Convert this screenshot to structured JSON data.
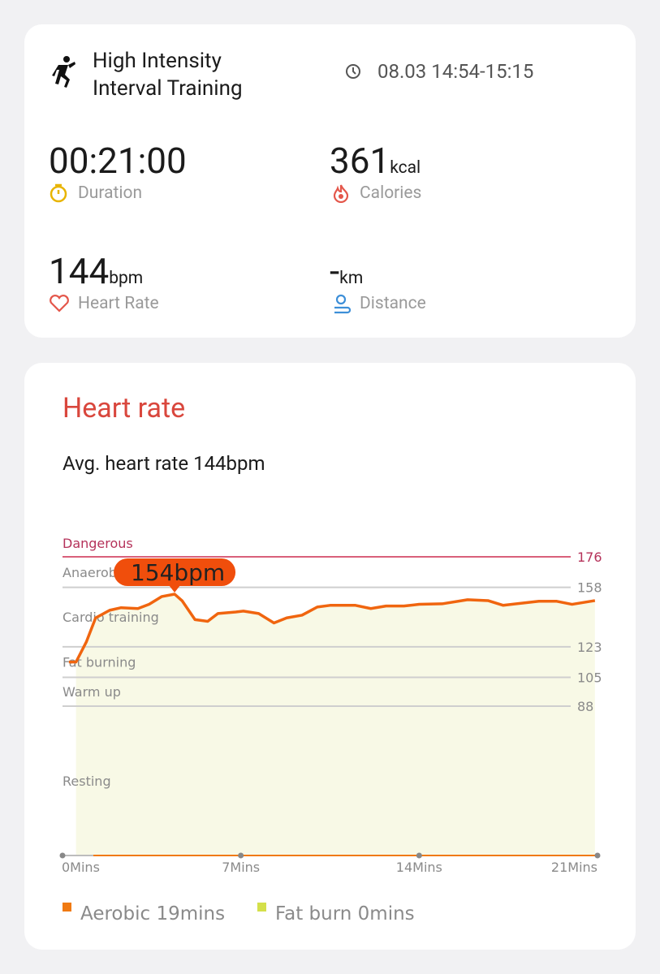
{
  "workout": {
    "title": "High Intensity Interval Training",
    "time": "08.03 14:54-15:15",
    "stats": [
      {
        "value": "00:21:00",
        "unit": null,
        "label": "Duration"
      },
      {
        "value": "361",
        "unit": "kcal",
        "label": "Calories"
      },
      {
        "value": "144",
        "unit": "bpm",
        "label": "Heart Rate"
      },
      {
        "value": "-",
        "unit": "km",
        "label": "Distance"
      }
    ]
  },
  "heart_rate": {
    "title": "Heart rate",
    "subtitle": "Avg. heart rate 144bpm"
  },
  "chart_data": {
    "type": "line",
    "x": [
      0.25,
      0.53,
      0.94,
      1.3,
      1.85,
      2.3,
      2.96,
      3.4,
      3.9,
      4.4,
      4.7,
      5.2,
      5.7,
      6.1,
      6.8,
      7.1,
      7.7,
      8.3,
      8.8,
      9.4,
      10.0,
      10.5,
      11.5,
      12.1,
      12.7,
      13.4,
      14.0,
      14.9,
      15.9,
      16.7,
      17.3,
      18.1,
      18.7,
      19.4,
      20.0,
      20.9
    ],
    "series": [
      {
        "name": "Heart rate",
        "color": "#f0650f",
        "values": [
          114,
          114,
          126,
          140,
          144.5,
          146,
          145.5,
          148,
          152.6,
          154,
          150,
          139,
          138,
          142.6,
          143.5,
          144,
          142.6,
          137,
          140,
          141.6,
          146.4,
          147.4,
          147.4,
          145.5,
          147,
          147,
          148,
          148.3,
          150.7,
          150.2,
          147.4,
          148.8,
          149.8,
          149.8,
          148,
          150.2
        ]
      }
    ],
    "xlim": [
      0,
      21
    ],
    "xticks": [
      {
        "value": 0,
        "label": "0Mins"
      },
      {
        "value": 7,
        "label": "7Mins"
      },
      {
        "value": 14,
        "label": "14Mins"
      },
      {
        "value": 21,
        "label": "21Mins"
      }
    ],
    "ylim": [
      0,
      176
    ],
    "yticks": [
      88,
      105,
      123,
      158,
      176
    ],
    "zones": [
      "Resting",
      "Warm up",
      "Fat burning",
      "Cardio training",
      "Anaerobic",
      "Dangerous"
    ],
    "annotations": [
      {
        "x": 4.4,
        "y": 154,
        "label": "154bpm"
      }
    ],
    "legend": [
      {
        "label": "Aerobic 19mins",
        "color": "#f07a12"
      },
      {
        "label": "Fat burn 0mins",
        "color": "#d4e04a"
      }
    ]
  }
}
